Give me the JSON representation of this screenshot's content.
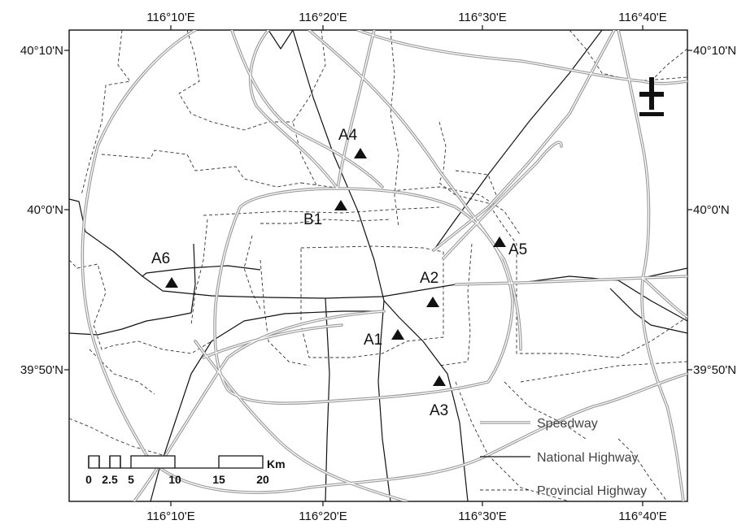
{
  "map": {
    "lon_labels": [
      "116°10'E",
      "116°20'E",
      "116°30'E",
      "116°40'E"
    ],
    "lat_labels": [
      "40°10'N",
      "40°0'N",
      "39°50'N"
    ],
    "sites": [
      {
        "id": "A4",
        "label": "A4"
      },
      {
        "id": "B1",
        "label": "B1"
      },
      {
        "id": "A5",
        "label": "A5"
      },
      {
        "id": "A6",
        "label": "A6"
      },
      {
        "id": "A2",
        "label": "A2"
      },
      {
        "id": "A1",
        "label": "A1"
      },
      {
        "id": "A3",
        "label": "A3"
      }
    ],
    "legend": [
      {
        "name": "Speedway",
        "style": "double-gray-line"
      },
      {
        "name": "National Highway",
        "style": "solid-black-line"
      },
      {
        "name": "Provincial Highway",
        "style": "dashed-line"
      }
    ],
    "scale_bar": {
      "labels": [
        "0",
        "2.5",
        "5",
        "10",
        "15",
        "20"
      ],
      "unit": "Km"
    },
    "north_arrow": {
      "icon": "north-arrow-icon"
    },
    "colors": {
      "speedway": "#9a9a9a",
      "national": "#111111",
      "provincial": "#333333"
    }
  }
}
